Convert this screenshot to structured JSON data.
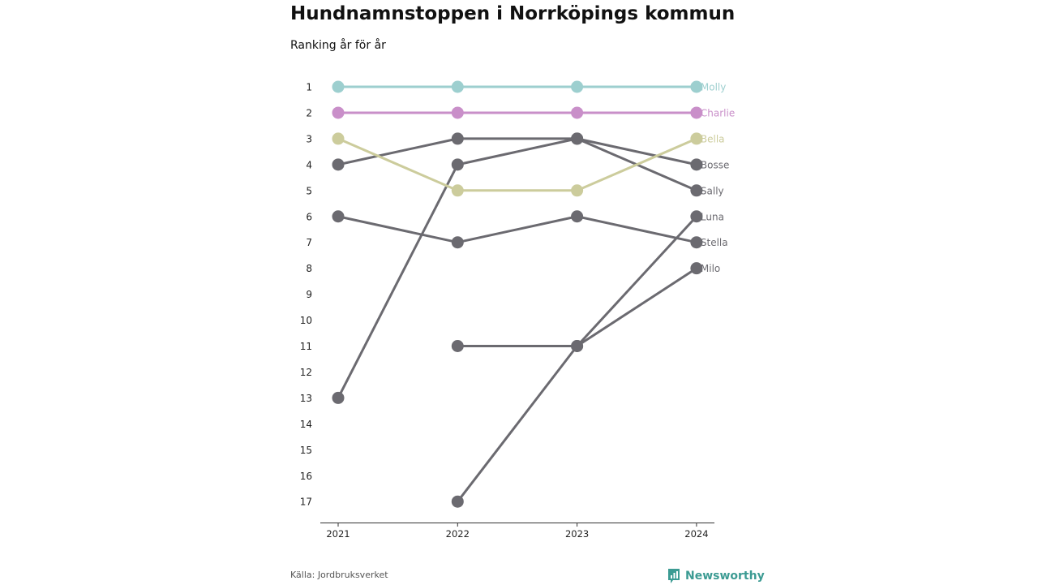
{
  "header": {
    "title": "Hundnamnstoppen i Norrköpings kommun",
    "subtitle": "Ranking år för år"
  },
  "footer": {
    "source": "Källa: Jordbruksverket",
    "brand": "Newsworthy",
    "brand_icon": "newsworthy-logo-icon",
    "brand_color": "#3c9b93"
  },
  "chart_data": {
    "type": "line",
    "title": "Hundnamnstoppen i Norrköpings kommun",
    "subtitle": "Ranking år för år",
    "x": [
      "2021",
      "2022",
      "2023",
      "2024"
    ],
    "y_ticks": [
      1,
      2,
      3,
      4,
      5,
      6,
      7,
      8,
      9,
      10,
      11,
      12,
      13,
      14,
      15,
      16,
      17
    ],
    "ylim": [
      1,
      17
    ],
    "y_inverted": true,
    "grid": false,
    "legend": "direct labels at right end",
    "default_color": "#6b6a70",
    "series": [
      {
        "name": "Molly",
        "values": [
          1,
          1,
          1,
          1
        ],
        "color": "#9dcfcf"
      },
      {
        "name": "Charlie",
        "values": [
          2,
          2,
          2,
          2
        ],
        "color": "#c98fc9"
      },
      {
        "name": "Bella",
        "values": [
          3,
          5,
          5,
          3
        ],
        "color": "#cccc9c"
      },
      {
        "name": "Bosse",
        "values": [
          4,
          3,
          3,
          4
        ],
        "color": "#6b6a70"
      },
      {
        "name": "Sally",
        "values": [
          13,
          4,
          3,
          5
        ],
        "color": "#6b6a70"
      },
      {
        "name": "Luna",
        "values": [
          null,
          17,
          11,
          6
        ],
        "color": "#6b6a70"
      },
      {
        "name": "Stella",
        "values": [
          6,
          7,
          6,
          7
        ],
        "color": "#6b6a70"
      },
      {
        "name": "Milo",
        "values": [
          null,
          11,
          11,
          8
        ],
        "color": "#6b6a70"
      }
    ]
  }
}
